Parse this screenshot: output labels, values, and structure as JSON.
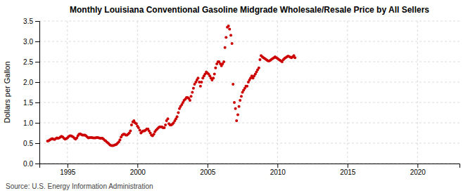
{
  "chart_data": {
    "type": "scatter",
    "title": "Monthly Louisiana Conventional Gasoline Midgrade Wholesale/Resale Price by All Sellers",
    "ylabel": "Dollars per Gallon",
    "annotations": [
      "Source: U.S. Energy Information Administration"
    ],
    "color": "#cc0000",
    "grid": true,
    "xlim": [
      1993.0,
      2023.0
    ],
    "ylim": [
      0.0,
      3.5
    ],
    "xticks": [
      1995,
      2000,
      2005,
      2010,
      2015,
      2020
    ],
    "yticks": [
      {
        "value": 0.0,
        "label": "0.0"
      },
      0.5,
      {
        "value": 1.0,
        "label": "1.0"
      },
      1.5,
      {
        "value": 2.0,
        "label": "2.0"
      },
      2.5,
      {
        "value": 3.0,
        "label": "3.0"
      },
      3.5
    ],
    "x": [
      1993.58,
      1993.67,
      1993.75,
      1993.83,
      1993.92,
      1994.0,
      1994.08,
      1994.17,
      1994.25,
      1994.33,
      1994.42,
      1994.5,
      1994.58,
      1994.67,
      1994.75,
      1994.83,
      1994.92,
      1995.0,
      1995.08,
      1995.17,
      1995.25,
      1995.33,
      1995.42,
      1995.5,
      1995.58,
      1995.67,
      1995.75,
      1995.83,
      1995.92,
      1996.0,
      1996.08,
      1996.17,
      1996.25,
      1996.33,
      1996.42,
      1996.5,
      1996.58,
      1996.67,
      1996.75,
      1996.83,
      1996.92,
      1997.0,
      1997.08,
      1997.17,
      1997.25,
      1997.33,
      1997.42,
      1997.5,
      1997.58,
      1997.67,
      1997.75,
      1997.83,
      1997.92,
      1998.0,
      1998.08,
      1998.17,
      1998.25,
      1998.33,
      1998.42,
      1998.5,
      1998.58,
      1998.67,
      1998.75,
      1998.83,
      1998.92,
      1999.0,
      1999.08,
      1999.17,
      1999.25,
      1999.33,
      1999.42,
      1999.5,
      1999.58,
      1999.67,
      1999.75,
      1999.83,
      1999.92,
      2000.0,
      2000.08,
      2000.17,
      2000.25,
      2000.33,
      2000.42,
      2000.5,
      2000.58,
      2000.67,
      2000.75,
      2000.83,
      2000.92,
      2001.0,
      2001.08,
      2001.17,
      2001.25,
      2001.33,
      2001.42,
      2001.5,
      2001.58,
      2001.67,
      2001.75,
      2001.83,
      2001.92,
      2002.0,
      2002.08,
      2002.17,
      2002.25,
      2002.33,
      2002.42,
      2002.5,
      2002.58,
      2002.67,
      2002.75,
      2002.83,
      2002.92,
      2003.0,
      2003.08,
      2003.17,
      2003.25,
      2003.33,
      2003.42,
      2003.5,
      2003.58,
      2003.67,
      2003.75,
      2003.83,
      2003.92,
      2004.0,
      2004.08,
      2004.17,
      2004.25,
      2004.33,
      2004.42,
      2004.5,
      2004.58,
      2004.67,
      2004.75,
      2004.83,
      2004.92,
      2005.0,
      2005.08,
      2005.17,
      2005.25,
      2005.33,
      2005.42,
      2005.5,
      2005.58,
      2005.67,
      2005.75,
      2005.83,
      2005.92,
      2006.0,
      2006.08,
      2006.17,
      2006.25,
      2006.33,
      2006.42,
      2006.5,
      2006.58,
      2006.67,
      2006.75,
      2006.83,
      2006.92,
      2007.0,
      2007.08,
      2007.17,
      2007.25,
      2007.33,
      2007.42,
      2007.5,
      2007.58,
      2007.67,
      2007.75,
      2007.83,
      2007.92,
      2008.0,
      2008.08,
      2008.17,
      2008.25,
      2008.33,
      2008.42,
      2008.5,
      2008.58,
      2008.67,
      2008.75,
      2008.83,
      2008.92,
      2009.0,
      2009.08,
      2009.17,
      2009.25,
      2009.33,
      2009.42,
      2009.5,
      2009.58,
      2009.67,
      2009.75,
      2009.83,
      2009.92,
      2010.0,
      2010.08,
      2010.17,
      2010.25,
      2010.33,
      2010.42,
      2010.5,
      2010.58,
      2010.67,
      2010.75,
      2010.83,
      2010.92,
      2011.0,
      2011.08,
      2011.17,
      2011.25
    ],
    "values": [
      0.55,
      0.56,
      0.58,
      0.6,
      0.61,
      0.6,
      0.59,
      0.61,
      0.63,
      0.62,
      0.63,
      0.65,
      0.67,
      0.65,
      0.62,
      0.6,
      0.61,
      0.63,
      0.66,
      0.68,
      0.68,
      0.67,
      0.65,
      0.62,
      0.6,
      0.63,
      0.68,
      0.72,
      0.73,
      0.71,
      0.7,
      0.7,
      0.7,
      0.68,
      0.65,
      0.63,
      0.64,
      0.64,
      0.64,
      0.63,
      0.63,
      0.63,
      0.64,
      0.64,
      0.63,
      0.62,
      0.62,
      0.62,
      0.6,
      0.57,
      0.55,
      0.52,
      0.5,
      0.47,
      0.45,
      0.44,
      0.44,
      0.45,
      0.46,
      0.47,
      0.5,
      0.53,
      0.58,
      0.65,
      0.7,
      0.72,
      0.72,
      0.7,
      0.7,
      0.72,
      0.75,
      0.8,
      0.95,
      1.02,
      1.05,
      1.0,
      0.98,
      0.92,
      0.88,
      0.82,
      0.75,
      0.78,
      0.8,
      0.8,
      0.82,
      0.85,
      0.85,
      0.8,
      0.75,
      0.7,
      0.68,
      0.72,
      0.78,
      0.82,
      0.85,
      0.88,
      0.9,
      0.9,
      0.9,
      0.88,
      0.88,
      0.95,
      1.05,
      1.1,
      0.98,
      0.95,
      0.95,
      0.97,
      1.0,
      1.05,
      1.1,
      1.15,
      1.25,
      1.35,
      1.4,
      1.45,
      1.5,
      1.55,
      1.58,
      1.62,
      1.62,
      1.6,
      1.55,
      1.65,
      1.75,
      1.85,
      1.95,
      2.0,
      2.05,
      2.1,
      2.0,
      1.9,
      2.0,
      2.1,
      2.15,
      2.2,
      2.25,
      2.22,
      2.2,
      2.15,
      2.1,
      2.05,
      2.1,
      2.2,
      2.35,
      2.45,
      2.5,
      2.5,
      2.45,
      2.4,
      2.45,
      2.5,
      2.85,
      3.1,
      3.35,
      3.38,
      3.3,
      3.15,
      2.95,
      1.95,
      1.5,
      1.35,
      1.05,
      1.2,
      1.4,
      1.55,
      1.65,
      1.75,
      1.8,
      1.85,
      1.9,
      1.9,
      2.0,
      2.05,
      2.1,
      2.15,
      2.1,
      2.15,
      2.2,
      2.25,
      2.3,
      2.35,
      2.55,
      2.65,
      2.62,
      2.6,
      2.58,
      2.56,
      2.54,
      2.52,
      2.52,
      2.54,
      2.56,
      2.58,
      2.6,
      2.62,
      2.6,
      2.58,
      2.56,
      2.54,
      2.52,
      2.5,
      2.55,
      2.58,
      2.6,
      2.62,
      2.64,
      2.63,
      2.61,
      2.6,
      2.62,
      2.65,
      2.6
    ]
  }
}
